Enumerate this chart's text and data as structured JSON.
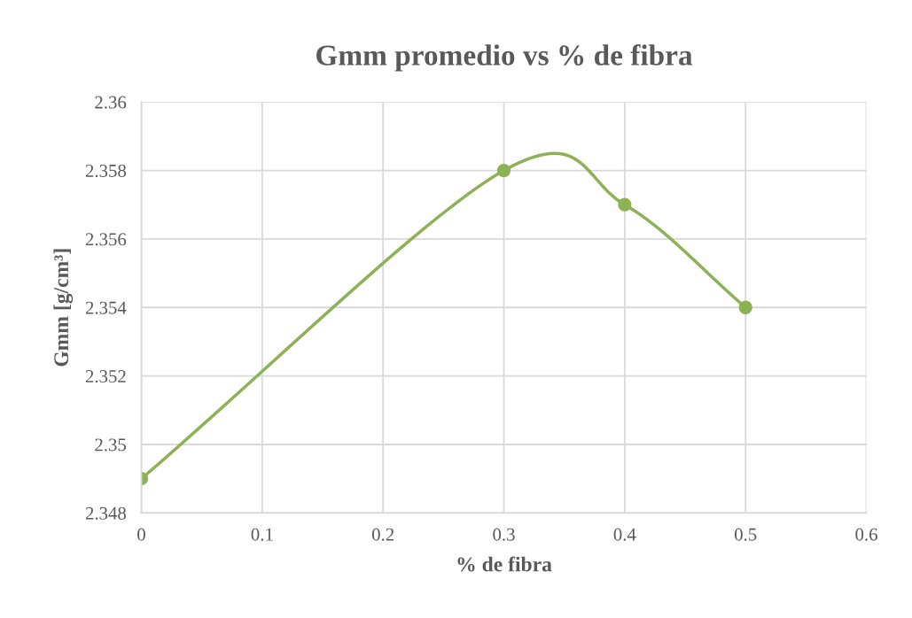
{
  "chart_data": {
    "type": "line",
    "title": "Gmm promedio vs % de fibra",
    "xlabel": "% de fibra",
    "ylabel": "Gmm [g/cm³]",
    "x": [
      0,
      0.3,
      0.4,
      0.5
    ],
    "series": [
      {
        "color": "#8db255",
        "values": [
          2.349,
          2.358,
          2.357,
          2.354
        ]
      }
    ],
    "xlim": [
      0,
      0.6
    ],
    "xticks": [
      0,
      0.1,
      0.2,
      0.3,
      0.4,
      0.5,
      0.6
    ],
    "ylim": [
      2.348,
      2.36
    ],
    "yticks": [
      2.348,
      2.35,
      2.352,
      2.354,
      2.356,
      2.358,
      2.36
    ],
    "grid": true,
    "marker": "circle",
    "line_style": "solid",
    "legend": false
  }
}
